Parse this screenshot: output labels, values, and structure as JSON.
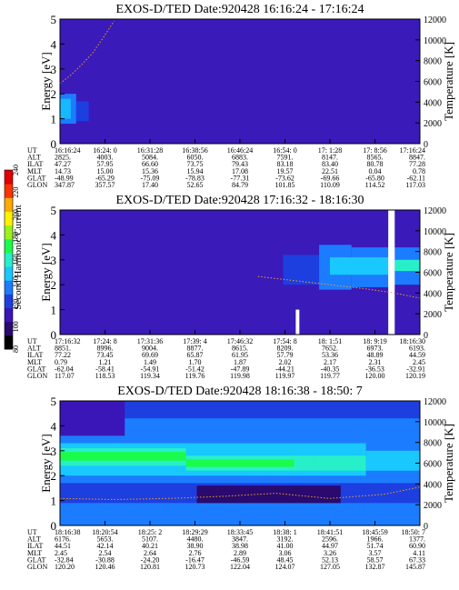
{
  "colorbar": {
    "label": "Second Harmonic Current",
    "ticks": [
      "80",
      "100",
      "120",
      "140",
      "160",
      "180",
      "200",
      "220",
      "240"
    ],
    "range": [
      80,
      240
    ],
    "colors": [
      "#000000",
      "#2a0a6e",
      "#3a16b8",
      "#1d3fe0",
      "#1c7cff",
      "#18c8ff",
      "#27f0c8",
      "#1bfb4c",
      "#9af21a",
      "#fff200",
      "#ffaa00",
      "#ff3300",
      "#e00000"
    ]
  },
  "chart_data": [
    {
      "type": "heatmap",
      "title": "EXOS-D/TED",
      "date": "Date:920428",
      "time_range": "16:16:24 - 17:16:24",
      "ylabel": "Energy [eV]",
      "ylabel_right": "Temperature [K]",
      "ylim": [
        0,
        5
      ],
      "ylim_right": [
        0,
        12000
      ],
      "yticks": [
        "0",
        "1",
        "2",
        "3",
        "4",
        "5"
      ],
      "yticks_right": [
        "0",
        "2000",
        "4000",
        "6000",
        "8000",
        "10000",
        "12000"
      ],
      "background": "#3a1ab8",
      "bands": [
        {
          "x0": 0.0,
          "x1": 0.045,
          "e0": 0.8,
          "e1": 2.0,
          "color": "#1c7cff"
        },
        {
          "x0": 0.0,
          "x1": 0.03,
          "e0": 1.0,
          "e1": 1.8,
          "color": "#18b8ff"
        },
        {
          "x0": 0.045,
          "x1": 0.08,
          "e0": 0.9,
          "e1": 1.7,
          "color": "#1d3fe0"
        }
      ],
      "temp_x": [
        0.0,
        0.03,
        0.06,
        0.09,
        0.12,
        0.15
      ],
      "temp_k": [
        5800,
        6600,
        7600,
        8700,
        10200,
        11800
      ],
      "table": {
        "rows": [
          {
            "label": "UT",
            "values": [
              "16:16:24",
              "16:24: 0",
              "16:31:28",
              "16:38:56",
              "16:46:24",
              "16:54: 0",
              "17: 1:28",
              "17: 8:56",
              "17:16:24"
            ]
          },
          {
            "label": "ALT",
            "values": [
              "2825.",
              "4003.",
              "5084.",
              "6050.",
              "6883.",
              "7591.",
              "8147.",
              "8565.",
              "8847."
            ]
          },
          {
            "label": "ILAT",
            "values": [
              "47.27",
              "57.95",
              "66.60",
              "73.75",
              "79.43",
              "83.18",
              "83.40",
              "80.78",
              "77.28"
            ]
          },
          {
            "label": "MLT",
            "values": [
              "14.73",
              "15.00",
              "15.36",
              "15.94",
              "17.08",
              "19.57",
              "22.51",
              "0.04",
              "0.78"
            ]
          },
          {
            "label": "GLAT",
            "values": [
              "-48.99",
              "-65.29",
              "-75.09",
              "-78.83",
              "-77.31",
              "-73.62",
              "-69.66",
              "-65.80",
              "-62.11"
            ]
          },
          {
            "label": "GLON",
            "values": [
              "347.87",
              "357.57",
              "17.40",
              "52.65",
              "84.79",
              "101.85",
              "110.09",
              "114.52",
              "117.03"
            ]
          }
        ]
      }
    },
    {
      "type": "heatmap",
      "title": "EXOS-D/TED",
      "date": "Date:920428",
      "time_range": "17:16:32 - 18:16:30",
      "ylabel": "Energy [eV]",
      "ylabel_right": "Temperature [K]",
      "ylim": [
        0,
        5
      ],
      "ylim_right": [
        0,
        12000
      ],
      "yticks": [
        "0",
        "1",
        "2",
        "3",
        "4",
        "5"
      ],
      "yticks_right": [
        "0",
        "2000",
        "4000",
        "6000",
        "8000",
        "10000",
        "12000"
      ],
      "background": "#3a1ab8",
      "bands": [
        {
          "x0": 0.62,
          "x1": 0.72,
          "e0": 2.0,
          "e1": 3.2,
          "color": "#1d3fe0"
        },
        {
          "x0": 0.72,
          "x1": 0.81,
          "e0": 1.8,
          "e1": 3.6,
          "color": "#1c7cff"
        },
        {
          "x0": 0.81,
          "x1": 0.92,
          "e0": 1.9,
          "e1": 3.5,
          "color": "#1c7cff"
        },
        {
          "x0": 0.75,
          "x1": 0.92,
          "e0": 2.4,
          "e1": 3.1,
          "color": "#18c8ff"
        },
        {
          "x0": 0.92,
          "x1": 1.0,
          "e0": 2.0,
          "e1": 3.5,
          "color": "#1c7cff"
        },
        {
          "x0": 0.93,
          "x1": 1.0,
          "e0": 2.55,
          "e1": 3.0,
          "color": "#27f0c8"
        }
      ],
      "gaps": [
        {
          "x0": 0.655,
          "x1": 0.665,
          "e0": 0,
          "e1": 1.0
        },
        {
          "x0": 0.912,
          "x1": 0.93,
          "e0": 0,
          "e1": 5
        }
      ],
      "temp_x": [
        0.55,
        0.65,
        0.75,
        0.85,
        0.93,
        1.0
      ],
      "temp_k": [
        5600,
        5200,
        4800,
        4400,
        4000,
        3500
      ],
      "table": {
        "rows": [
          {
            "label": "UT",
            "values": [
              "17:16:32",
              "17:24: 8",
              "17:31:36",
              "17:39: 4",
              "17:46:32",
              "17:54: 8",
              "18: 1:51",
              "18: 9:19",
              "18:16:30"
            ]
          },
          {
            "label": "ALT",
            "values": [
              "8851.",
              "8996.",
              "9004.",
              "8877.",
              "8615.",
              "8209.",
              "7652.",
              "6973.",
              "6193."
            ]
          },
          {
            "label": "ILAT",
            "values": [
              "77.22",
              "73.45",
              "69.69",
              "65.87",
              "61.95",
              "57.79",
              "53.36",
              "48.89",
              "44.59"
            ]
          },
          {
            "label": "MLT",
            "values": [
              "0.79",
              "1.21",
              "1.49",
              "1.70",
              "1.87",
              "2.02",
              "2.17",
              "2.31",
              "2.45"
            ]
          },
          {
            "label": "GLAT",
            "values": [
              "-62.04",
              "-58.41",
              "-54.91",
              "-51.42",
              "-47.89",
              "-44.21",
              "-40.35",
              "-36.53",
              "-32.91"
            ]
          },
          {
            "label": "GLON",
            "values": [
              "117.07",
              "118.53",
              "119.34",
              "119.76",
              "119.98",
              "119.97",
              "119.77",
              "120.00",
              "120.19"
            ]
          }
        ]
      }
    },
    {
      "type": "heatmap",
      "title": "EXOS-D/TED",
      "date": "Date:920428",
      "time_range": "18:16:38 - 18:50: 7",
      "ylabel": "Energy [eV]",
      "ylabel_right": "Temperature [K]",
      "ylim": [
        0,
        5
      ],
      "ylim_right": [
        0,
        12000
      ],
      "yticks": [
        "0",
        "1",
        "2",
        "3",
        "4",
        "5"
      ],
      "yticks_right": [
        "0",
        "2000",
        "4000",
        "6000",
        "8000",
        "10000",
        "12000"
      ],
      "background": "#1c7cff",
      "bands": [
        {
          "x0": 0.0,
          "x1": 1.0,
          "e0": 0.9,
          "e1": 4.5,
          "color": "#1c7cff"
        },
        {
          "x0": 0.0,
          "x1": 1.0,
          "e0": 0.9,
          "e1": 1.7,
          "color": "#1d3fe0"
        },
        {
          "x0": 0.38,
          "x1": 0.78,
          "e0": 0.9,
          "e1": 1.6,
          "color": "#2a0a6e"
        },
        {
          "x0": 0.0,
          "x1": 0.85,
          "e0": 2.0,
          "e1": 3.3,
          "color": "#18c8ff"
        },
        {
          "x0": 0.0,
          "x1": 0.35,
          "e0": 2.4,
          "e1": 3.1,
          "color": "#27f0c8"
        },
        {
          "x0": 0.0,
          "x1": 0.35,
          "e0": 2.6,
          "e1": 2.95,
          "color": "#1bfb4c"
        },
        {
          "x0": 0.35,
          "x1": 0.7,
          "e0": 2.2,
          "e1": 2.8,
          "color": "#27f0c8"
        },
        {
          "x0": 0.35,
          "x1": 0.65,
          "e0": 2.35,
          "e1": 2.65,
          "color": "#1bfb4c"
        },
        {
          "x0": 0.7,
          "x1": 0.85,
          "e0": 2.2,
          "e1": 2.8,
          "color": "#27f0c8"
        },
        {
          "x0": 0.85,
          "x1": 1.0,
          "e0": 2.2,
          "e1": 3.0,
          "color": "#18c8ff"
        },
        {
          "x0": 0.0,
          "x1": 1.0,
          "e0": 4.3,
          "e1": 5.0,
          "color": "#1d3fe0"
        },
        {
          "x0": 0.0,
          "x1": 0.18,
          "e0": 3.6,
          "e1": 5.0,
          "color": "#3a16b8"
        }
      ],
      "temp_x": [
        0.0,
        0.15,
        0.3,
        0.45,
        0.6,
        0.75,
        0.9,
        1.0
      ],
      "temp_k": [
        2600,
        2500,
        2600,
        2800,
        3100,
        2600,
        3000,
        3700
      ],
      "table": {
        "rows": [
          {
            "label": "UT",
            "values": [
              "18:16:38",
              "18:20:54",
              "18:25: 2",
              "18:29:29",
              "18:33:45",
              "18:38: 1",
              "18:41:51",
              "18:45:59",
              "18:50: 7"
            ]
          },
          {
            "label": "ALT",
            "values": [
              "6176.",
              "5653.",
              "5107.",
              "4480.",
              "3847.",
              "3192.",
              "2596.",
              "1966.",
              "1377."
            ]
          },
          {
            "label": "ILAT",
            "values": [
              "44.51",
              "42.14",
              "40.21",
              "38.90",
              "38.98",
              "41.00",
              "44.97",
              "51.74",
              "60.90"
            ]
          },
          {
            "label": "MLT",
            "values": [
              "2.45",
              "2.54",
              "2.64",
              "2.76",
              "2.89",
              "3.06",
              "3.26",
              "3.57",
              "4.11"
            ]
          },
          {
            "label": "GLAT",
            "values": [
              "-32.84",
              "-30.88",
              "-24.20",
              "-16.47",
              "-46.59",
              "48.45",
              "52.13",
              "58.57",
              "67.33"
            ]
          },
          {
            "label": "GLON",
            "values": [
              "120.20",
              "120.46",
              "120.81",
              "120.73",
              "122.04",
              "124.07",
              "127.05",
              "132.87",
              "145.87"
            ]
          }
        ]
      }
    }
  ]
}
